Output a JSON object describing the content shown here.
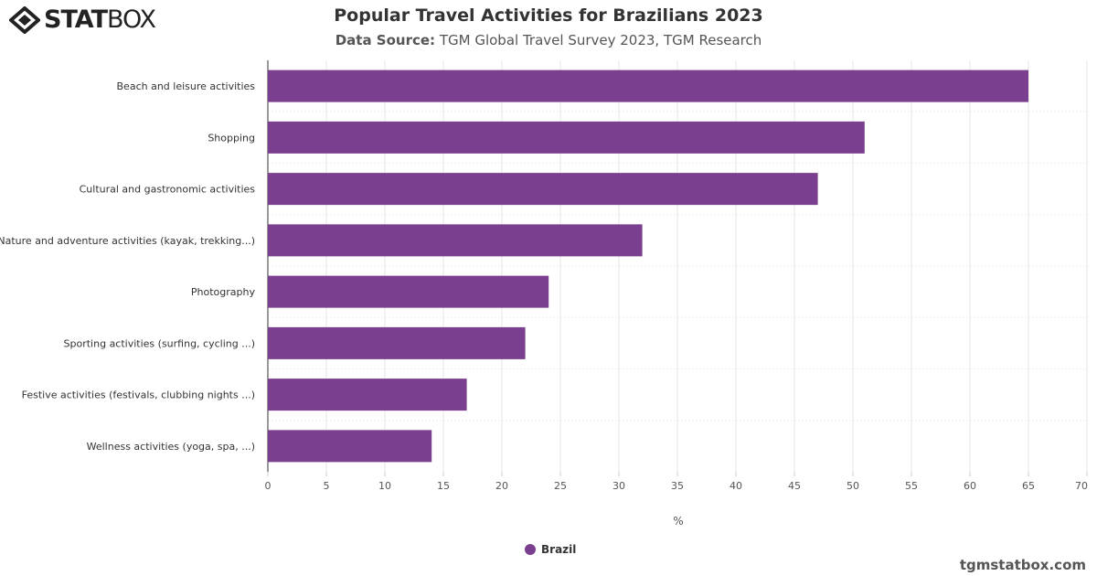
{
  "brand": {
    "logo_bold": "STAT",
    "logo_light": "BOX",
    "footer": "tgmstatbox.com"
  },
  "chart_data": {
    "type": "bar",
    "orientation": "horizontal",
    "title": "Popular Travel Activities for Brazilians 2023",
    "subtitle_label": "Data Source:",
    "subtitle": "TGM Global Travel Survey 2023, TGM Research",
    "categories": [
      "Beach and leisure activities",
      "Shopping",
      "Cultural and gastronomic activities",
      "Nature and adventure activities (kayak, trekking...)",
      "Photography",
      "Sporting activities (surfing, cycling ...)",
      "Festive activities (festivals, clubbing nights ...)",
      "Wellness activities (yoga, spa, ...)"
    ],
    "series": [
      {
        "name": "Brazil",
        "values": [
          65,
          51,
          47,
          32,
          24,
          22,
          17,
          14
        ],
        "color": "#7b3f8f"
      }
    ],
    "xlabel": "%",
    "xlim": [
      0,
      70
    ],
    "xticks": [
      0,
      5,
      10,
      15,
      20,
      25,
      30,
      35,
      40,
      45,
      50,
      55,
      60,
      65,
      70
    ],
    "grid": true,
    "legend": "bottom"
  }
}
